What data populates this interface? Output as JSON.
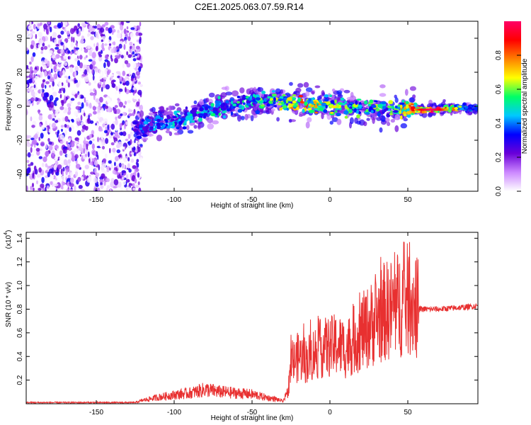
{
  "title": "C2E1.2025.063.07.59.R14",
  "chart_data": [
    {
      "type": "heatmap",
      "xlabel": "Height of straight line (km)",
      "ylabel": "Frequency (Hz)",
      "xlim": [
        -195,
        95
      ],
      "ylim": [
        -50,
        50
      ],
      "xticks": [
        -150,
        -100,
        -50,
        0,
        50
      ],
      "yticks": [
        -40,
        -20,
        0,
        20,
        40
      ],
      "colorbar": {
        "label": "Normalized spectral amplitude",
        "range": [
          0.0,
          1.0
        ],
        "ticks": [
          0.0,
          0.2,
          0.4,
          0.6,
          0.8
        ],
        "colormap": [
          "#ffffff",
          "#cc88ff",
          "#6a00d8",
          "#0000ff",
          "#00c8ff",
          "#00ff66",
          "#ffff00",
          "#ff8000",
          "#ff0000",
          "#ff0066"
        ]
      },
      "noise_region_x": [
        -195,
        -125
      ],
      "ridge": [
        {
          "x": -125,
          "y": -14,
          "amp": 0.35
        },
        {
          "x": -110,
          "y": -10,
          "amp": 0.4
        },
        {
          "x": -95,
          "y": -8,
          "amp": 0.45
        },
        {
          "x": -80,
          "y": -3,
          "amp": 0.45
        },
        {
          "x": -65,
          "y": 0,
          "amp": 0.5
        },
        {
          "x": -50,
          "y": 3,
          "amp": 0.5
        },
        {
          "x": -35,
          "y": 4,
          "amp": 0.55
        },
        {
          "x": -25,
          "y": 2,
          "amp": 0.75
        },
        {
          "x": -10,
          "y": 1,
          "amp": 0.7
        },
        {
          "x": 0,
          "y": 1,
          "amp": 0.6
        },
        {
          "x": 20,
          "y": -1,
          "amp": 0.55
        },
        {
          "x": 40,
          "y": -2,
          "amp": 0.55
        },
        {
          "x": 55,
          "y": -2,
          "amp": 0.8
        },
        {
          "x": 65,
          "y": -2,
          "amp": 1.0
        },
        {
          "x": 80,
          "y": -1,
          "amp": 0.7
        },
        {
          "x": 95,
          "y": -1,
          "amp": 0.5
        }
      ]
    },
    {
      "type": "line",
      "xlabel": "Height of straight line (km)",
      "ylabel": "SNR (10 * v/v)",
      "y_multiplier": "(x10",
      "y_multiplier_exp": "4",
      "y_multiplier_close": ")",
      "xlim": [
        -195,
        95
      ],
      "ylim": [
        0,
        1.45
      ],
      "xticks": [
        -150,
        -100,
        -50,
        0,
        50
      ],
      "yticks": [
        0.2,
        0.4,
        0.6,
        0.8,
        1.0,
        1.2,
        1.4
      ],
      "series": [
        {
          "color": "#e83030",
          "x": [
            -195,
            -150,
            -125,
            -120,
            -110,
            -100,
            -90,
            -80,
            -70,
            -60,
            -50,
            -45,
            -40,
            -35,
            -30,
            -27,
            -25,
            -20,
            -15,
            -10,
            -5,
            0,
            5,
            10,
            15,
            20,
            25,
            30,
            35,
            40,
            45,
            50,
            55,
            56,
            60,
            70,
            80,
            90,
            95
          ],
          "y": [
            0.01,
            0.01,
            0.01,
            0.03,
            0.055,
            0.075,
            0.09,
            0.12,
            0.1,
            0.09,
            0.08,
            0.065,
            0.05,
            0.04,
            0.02,
            0.1,
            0.33,
            0.4,
            0.37,
            0.43,
            0.47,
            0.48,
            0.5,
            0.46,
            0.53,
            0.6,
            0.65,
            0.72,
            0.78,
            0.8,
            0.85,
            0.88,
            0.84,
            0.8,
            0.8,
            0.8,
            0.81,
            0.82,
            0.83
          ]
        }
      ]
    }
  ]
}
